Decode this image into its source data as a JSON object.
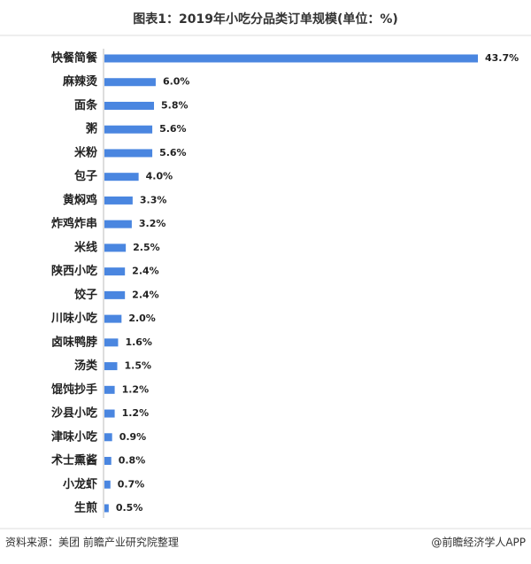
{
  "chart_data": {
    "type": "bar",
    "orientation": "horizontal",
    "title": "图表1：2019年小吃分品类订单规模(单位：%)",
    "categories": [
      "快餐简餐",
      "麻辣烫",
      "面条",
      "粥",
      "米粉",
      "包子",
      "黄焖鸡",
      "炸鸡炸串",
      "米线",
      "陕西小吃",
      "饺子",
      "川味小吃",
      "卤味鸭脖",
      "汤类",
      "馄饨抄手",
      "沙县小吃",
      "津味小吃",
      "术士熏酱",
      "小龙虾",
      "生煎"
    ],
    "values": [
      43.7,
      6.0,
      5.8,
      5.6,
      5.6,
      4.0,
      3.3,
      3.2,
      2.5,
      2.4,
      2.4,
      2.0,
      1.6,
      1.5,
      1.2,
      1.2,
      0.9,
      0.8,
      0.7,
      0.5
    ],
    "value_labels": [
      "43.7%",
      "6.0%",
      "5.8%",
      "5.6%",
      "5.6%",
      "4.0%",
      "3.3%",
      "3.2%",
      "2.5%",
      "2.4%",
      "2.4%",
      "2.0%",
      "1.6%",
      "1.5%",
      "1.2%",
      "1.2%",
      "0.9%",
      "0.8%",
      "0.7%",
      "0.5%"
    ],
    "color": "#4a86e0"
  },
  "footer": {
    "source": "资料来源：美团 前瞻产业研究院整理",
    "credit": "@前瞻经济学人APP"
  }
}
